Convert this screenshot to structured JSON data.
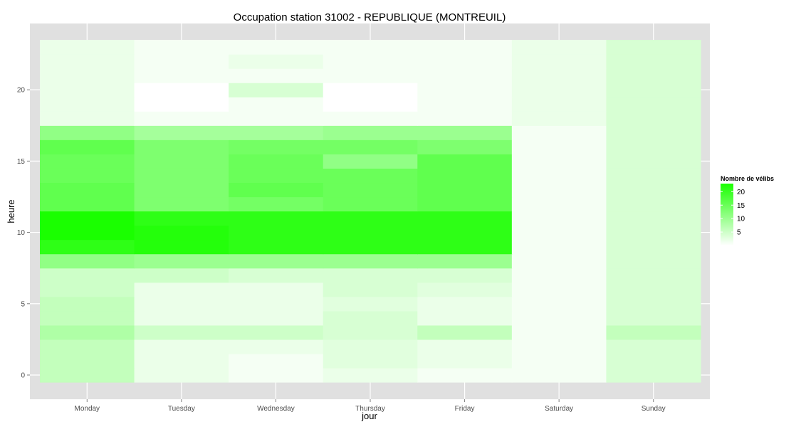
{
  "chart_data": {
    "type": "heatmap",
    "title": "Occupation station 31002 - REPUBLIQUE (MONTREUIL)",
    "xlabel": "jour",
    "ylabel": "heure",
    "categories": [
      "Monday",
      "Tuesday",
      "Wednesday",
      "Thursday",
      "Friday",
      "Saturday",
      "Sunday"
    ],
    "y": [
      0,
      1,
      2,
      3,
      4,
      5,
      6,
      7,
      8,
      9,
      10,
      11,
      12,
      13,
      14,
      15,
      16,
      17,
      18,
      19,
      20,
      21,
      22,
      23
    ],
    "ylim": [
      -0.5,
      23.5
    ],
    "y_ticks": [
      0,
      5,
      10,
      15,
      20
    ],
    "values": [
      [
        6,
        2,
        1,
        2,
        1,
        1,
        4
      ],
      [
        6,
        2,
        1,
        3,
        2,
        1,
        4
      ],
      [
        6,
        2,
        2,
        3,
        2,
        1,
        4
      ],
      [
        8,
        5,
        5,
        4,
        6,
        1,
        6
      ],
      [
        6,
        2,
        2,
        4,
        2,
        1,
        4
      ],
      [
        6,
        2,
        2,
        3,
        2,
        1,
        4
      ],
      [
        5,
        2,
        2,
        4,
        3,
        1,
        4
      ],
      [
        5,
        5,
        4,
        4,
        4,
        1,
        4
      ],
      [
        11,
        10,
        10,
        10,
        10,
        1,
        4
      ],
      [
        21,
        22,
        21,
        21,
        21,
        1,
        4
      ],
      [
        23,
        22,
        21,
        21,
        21,
        1,
        4
      ],
      [
        23,
        21,
        21,
        21,
        21,
        1,
        4
      ],
      [
        16,
        13,
        14,
        15,
        16,
        1,
        4
      ],
      [
        16,
        13,
        16,
        15,
        16,
        1,
        4
      ],
      [
        15,
        13,
        15,
        15,
        16,
        1,
        4
      ],
      [
        15,
        13,
        15,
        11,
        16,
        1,
        4
      ],
      [
        16,
        13,
        14,
        14,
        13,
        1,
        4
      ],
      [
        11,
        9,
        9,
        10,
        10,
        1,
        4
      ],
      [
        2,
        1,
        1,
        1,
        1,
        2,
        4
      ],
      [
        2,
        0,
        1,
        0,
        1,
        2,
        4
      ],
      [
        2,
        0,
        4,
        0,
        1,
        2,
        4
      ],
      [
        2,
        1,
        1,
        1,
        1,
        2,
        4
      ],
      [
        2,
        1,
        2,
        1,
        1,
        2,
        4
      ],
      [
        2,
        1,
        1,
        1,
        1,
        2,
        4
      ]
    ],
    "legend": {
      "title": "Nombre de vélibs",
      "position": "right",
      "breaks": [
        5,
        10,
        15,
        20
      ],
      "range": [
        0,
        23
      ],
      "low_color": "#ffffff",
      "high_color": "#1aff00"
    },
    "grid": true,
    "panel_color": "#e0e0e0",
    "grid_color": "#ffffff"
  }
}
